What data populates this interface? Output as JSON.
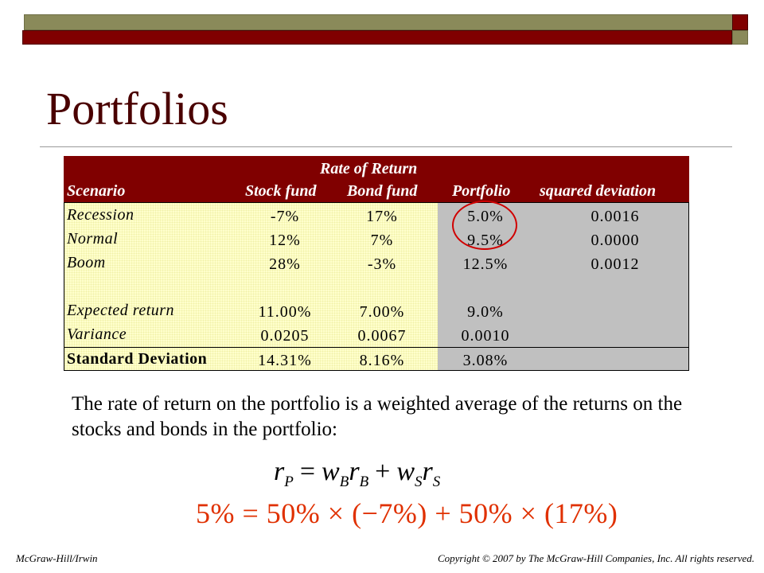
{
  "slide": {
    "title": "Portfolios",
    "paragraph": "The rate of return on the portfolio is a weighted average of the returns on the stocks and bonds in the portfolio:",
    "formula": {
      "lhs": "r",
      "lhs_sub": "P",
      "eq": "=",
      "t1": "w",
      "t1_sub": "B",
      "t1b": "r",
      "t1b_sub": "B",
      "plus": "+",
      "t2": "w",
      "t2_sub": "S",
      "t2b": "r",
      "t2b_sub": "S"
    },
    "example": "5% = 50% × (−7%) + 50% × (17%)",
    "footer_left": "McGraw-Hill/Irwin",
    "footer_right": "Copyright © 2007 by The McGraw-Hill Companies, Inc. All rights reserved.",
    "colors": {
      "maroon": "#800000",
      "olive": "#8a8a5a",
      "cell_yellow": "#ffffcc",
      "cell_gray": "#c0c0c0",
      "accent_red": "#e03000"
    }
  },
  "table": {
    "group_header": "Rate of Return",
    "headers": [
      "Scenario",
      "Stock fund",
      "Bond fund",
      "Portfolio",
      "squared deviation"
    ],
    "rows": [
      {
        "label": "Recession",
        "stock": "-7%",
        "bond": "17%",
        "portfolio": "5.0%",
        "sqdev": "0.0016"
      },
      {
        "label": "Normal",
        "stock": "12%",
        "bond": "7%",
        "portfolio": "9.5%",
        "sqdev": "0.0000"
      },
      {
        "label": "Boom",
        "stock": "28%",
        "bond": "-3%",
        "portfolio": "12.5%",
        "sqdev": "0.0012"
      }
    ],
    "expected": {
      "label": "Expected return",
      "stock": "11.00%",
      "bond": "7.00%",
      "portfolio": "9.0%"
    },
    "variance": {
      "label": "Variance",
      "stock": "0.0205",
      "bond": "0.0067",
      "portfolio": "0.0010"
    },
    "stdev": {
      "label": "Standard Deviation",
      "stock": "14.31%",
      "bond": "8.16%",
      "portfolio": "3.08%"
    }
  }
}
